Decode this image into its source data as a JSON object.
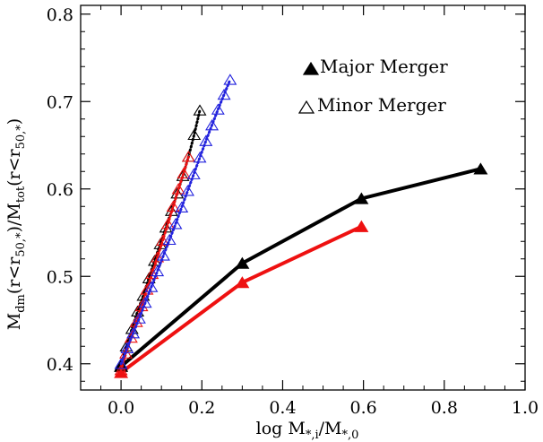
{
  "chart_data": {
    "type": "line",
    "xlabel": {
      "main": "log M",
      "sub1": "*,i",
      "mid": "/M",
      "sub2": "*,0"
    },
    "ylabel": {
      "p1": "M",
      "s1": "dm",
      "p2": "(r<r",
      "s2": "50,*",
      "p3": ")/M",
      "s3": "tot",
      "p4": "(r<r",
      "s4": "50,*",
      "p5": ")"
    },
    "xlim": [
      -0.1,
      1.0
    ],
    "ylim": [
      0.37,
      0.81
    ],
    "xticks": [
      0.0,
      0.2,
      0.4,
      0.6,
      0.8,
      1.0
    ],
    "xtick_labels": [
      "0.0",
      "0.2",
      "0.4",
      "0.6",
      "0.8",
      "1.0"
    ],
    "yticks": [
      0.4,
      0.5,
      0.6,
      0.7,
      0.8
    ],
    "ytick_labels": [
      "0.4",
      "0.5",
      "0.6",
      "0.7",
      "0.8"
    ],
    "grid": false,
    "legend_position": "top-right",
    "legend": [
      {
        "label": "Major Merger",
        "marker": "filled-triangle"
      },
      {
        "label": "Minor Merger",
        "marker": "open-triangle"
      }
    ],
    "series": [
      {
        "merger": "major",
        "color": "#000000",
        "marker": "filled-triangle",
        "line": "solid",
        "x": [
          0.0,
          0.3,
          0.595,
          0.89
        ],
        "y": [
          0.397,
          0.515,
          0.589,
          0.623
        ]
      },
      {
        "merger": "major",
        "color": "#ee1111",
        "marker": "filled-triangle",
        "line": "solid",
        "x": [
          0.0,
          0.3,
          0.595
        ],
        "y": [
          0.39,
          0.493,
          0.557
        ]
      },
      {
        "merger": "minor",
        "color": "#000000",
        "marker": "open-triangle",
        "line": "dotted",
        "x": [
          0.0,
          0.013,
          0.027,
          0.041,
          0.055,
          0.069,
          0.083,
          0.097,
          0.111,
          0.125,
          0.139,
          0.153,
          0.167,
          0.181,
          0.195
        ],
        "y": [
          0.398,
          0.42,
          0.44,
          0.46,
          0.478,
          0.498,
          0.518,
          0.537,
          0.556,
          0.575,
          0.595,
          0.615,
          0.637,
          0.662,
          0.69
        ]
      },
      {
        "merger": "minor",
        "color": "#ee1111",
        "marker": "open-triangle",
        "line": "dotted",
        "x": [
          0.0,
          0.012,
          0.025,
          0.038,
          0.051,
          0.064,
          0.077,
          0.09,
          0.103,
          0.116,
          0.129,
          0.142,
          0.155,
          0.167
        ],
        "y": [
          0.393,
          0.412,
          0.43,
          0.448,
          0.466,
          0.485,
          0.503,
          0.522,
          0.541,
          0.56,
          0.58,
          0.6,
          0.618,
          0.637
        ]
      },
      {
        "merger": "minor",
        "color": "#2222dd",
        "marker": "open-triangle",
        "line": "dotted",
        "x": [
          0.0,
          0.015,
          0.03,
          0.045,
          0.06,
          0.075,
          0.09,
          0.105,
          0.12,
          0.135,
          0.15,
          0.165,
          0.18,
          0.195,
          0.21,
          0.225,
          0.24,
          0.255,
          0.27
        ],
        "y": [
          0.4,
          0.418,
          0.435,
          0.452,
          0.47,
          0.488,
          0.506,
          0.524,
          0.542,
          0.56,
          0.579,
          0.598,
          0.617,
          0.636,
          0.655,
          0.673,
          0.691,
          0.708,
          0.725
        ]
      }
    ]
  }
}
